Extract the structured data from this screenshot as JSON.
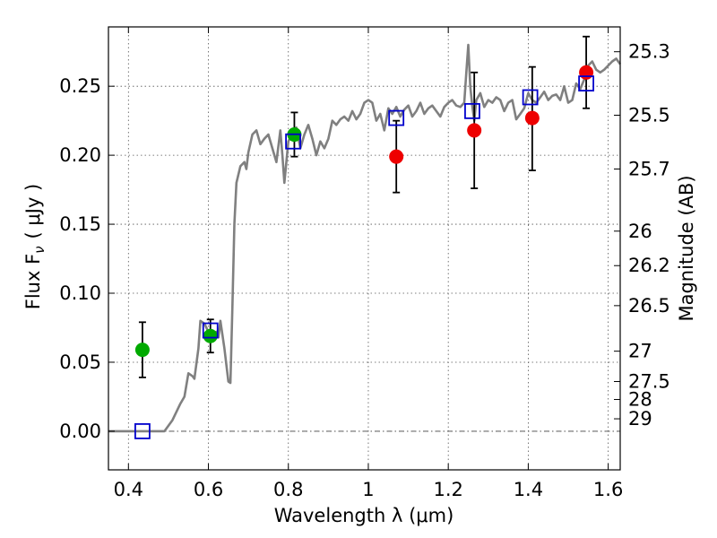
{
  "chart_data": {
    "type": "scatter",
    "title": "",
    "xlabel": "Wavelength  λ (μm)",
    "ylabel": "Flux  F",
    "ylabel_subscript": "ν",
    "ylabel_units": "( μJy )",
    "y2label": "Magnitude (AB)",
    "xlim": [
      0.35,
      1.63
    ],
    "ylim": [
      -0.028,
      0.293
    ],
    "grid": true,
    "x_ticks": [
      0.4,
      0.6,
      0.8,
      1.0,
      1.2,
      1.4,
      1.6
    ],
    "x_tick_labels": [
      "0.4",
      "0.6",
      "0.8",
      "1",
      "1.2",
      "1.4",
      "1.6"
    ],
    "y_ticks": [
      0.0,
      0.05,
      0.1,
      0.15,
      0.2,
      0.25
    ],
    "y_tick_labels": [
      "0.00",
      "0.05",
      "0.10",
      "0.15",
      "0.20",
      "0.25"
    ],
    "y2_ticks": [
      {
        "flux": 0.275,
        "label": "25.3"
      },
      {
        "flux": 0.229,
        "label": "25.5"
      },
      {
        "flux": 0.19,
        "label": "25.7"
      },
      {
        "flux": 0.145,
        "label": "26"
      },
      {
        "flux": 0.12,
        "label": "26.2"
      },
      {
        "flux": 0.091,
        "label": "26.5"
      },
      {
        "flux": 0.058,
        "label": "27"
      },
      {
        "flux": 0.036,
        "label": "27.5"
      },
      {
        "flux": 0.023,
        "label": "28"
      },
      {
        "flux": 0.009,
        "label": "29"
      }
    ],
    "colors": {
      "model": "#808080",
      "green": "#00aa00",
      "red": "#ee0000",
      "blue": "#0000cc",
      "errorbar": "#000000",
      "grid": "#555555"
    },
    "model_spectrum": {
      "name": "model SED",
      "x": [
        0.35,
        0.49,
        0.51,
        0.53,
        0.54,
        0.55,
        0.56,
        0.565,
        0.575,
        0.58,
        0.59,
        0.6,
        0.61,
        0.62,
        0.625,
        0.63,
        0.64,
        0.65,
        0.655,
        0.66,
        0.665,
        0.67,
        0.68,
        0.69,
        0.695,
        0.7,
        0.71,
        0.72,
        0.73,
        0.74,
        0.75,
        0.76,
        0.77,
        0.78,
        0.785,
        0.79,
        0.8,
        0.81,
        0.82,
        0.83,
        0.84,
        0.85,
        0.86,
        0.87,
        0.88,
        0.89,
        0.9,
        0.91,
        0.92,
        0.93,
        0.94,
        0.95,
        0.96,
        0.97,
        0.98,
        0.99,
        1.0,
        1.01,
        1.02,
        1.03,
        1.04,
        1.05,
        1.06,
        1.07,
        1.08,
        1.09,
        1.1,
        1.11,
        1.12,
        1.13,
        1.14,
        1.15,
        1.16,
        1.17,
        1.18,
        1.19,
        1.2,
        1.21,
        1.22,
        1.23,
        1.24,
        1.245,
        1.25,
        1.255,
        1.26,
        1.265,
        1.27,
        1.28,
        1.29,
        1.3,
        1.31,
        1.32,
        1.33,
        1.34,
        1.35,
        1.36,
        1.37,
        1.38,
        1.39,
        1.4,
        1.41,
        1.42,
        1.43,
        1.44,
        1.45,
        1.46,
        1.47,
        1.48,
        1.49,
        1.5,
        1.51,
        1.52,
        1.53,
        1.54,
        1.55,
        1.56,
        1.57,
        1.58,
        1.59,
        1.6,
        1.61,
        1.62,
        1.63
      ],
      "y": [
        0.0,
        0.0,
        0.008,
        0.02,
        0.025,
        0.042,
        0.04,
        0.038,
        0.06,
        0.08,
        0.078,
        0.072,
        0.066,
        0.072,
        0.068,
        0.08,
        0.06,
        0.036,
        0.035,
        0.09,
        0.15,
        0.18,
        0.192,
        0.195,
        0.19,
        0.202,
        0.215,
        0.218,
        0.208,
        0.212,
        0.215,
        0.205,
        0.195,
        0.218,
        0.2,
        0.18,
        0.21,
        0.216,
        0.22,
        0.205,
        0.215,
        0.222,
        0.212,
        0.2,
        0.21,
        0.205,
        0.212,
        0.225,
        0.222,
        0.226,
        0.228,
        0.225,
        0.232,
        0.226,
        0.23,
        0.238,
        0.24,
        0.238,
        0.225,
        0.23,
        0.218,
        0.234,
        0.23,
        0.235,
        0.228,
        0.233,
        0.236,
        0.228,
        0.232,
        0.238,
        0.23,
        0.234,
        0.236,
        0.232,
        0.228,
        0.235,
        0.238,
        0.24,
        0.236,
        0.235,
        0.238,
        0.26,
        0.28,
        0.25,
        0.236,
        0.225,
        0.24,
        0.245,
        0.235,
        0.24,
        0.238,
        0.242,
        0.24,
        0.232,
        0.238,
        0.24,
        0.226,
        0.23,
        0.234,
        0.245,
        0.24,
        0.238,
        0.242,
        0.246,
        0.24,
        0.243,
        0.244,
        0.24,
        0.25,
        0.238,
        0.24,
        0.252,
        0.248,
        0.255,
        0.265,
        0.268,
        0.262,
        0.26,
        0.262,
        0.265,
        0.268,
        0.27,
        0.266
      ]
    },
    "series": [
      {
        "name": "green circles",
        "marker": "circle",
        "color": "#00aa00",
        "x": [
          0.435,
          0.605,
          0.815
        ],
        "y": [
          0.059,
          0.069,
          0.215
        ],
        "yerr_low": [
          0.039,
          0.057,
          0.199
        ],
        "yerr_high": [
          0.079,
          0.081,
          0.231
        ]
      },
      {
        "name": "red circles",
        "marker": "circle",
        "color": "#ee0000",
        "x": [
          1.07,
          1.265,
          1.41,
          1.545
        ],
        "y": [
          0.199,
          0.218,
          0.227,
          0.26
        ],
        "yerr_low": [
          0.173,
          0.176,
          0.189,
          0.234
        ],
        "yerr_high": [
          0.225,
          0.26,
          0.264,
          0.286
        ]
      },
      {
        "name": "blue squares",
        "marker": "square",
        "color": "#0000cc",
        "x": [
          0.435,
          0.605,
          0.812,
          1.07,
          1.26,
          1.405,
          1.545
        ],
        "y": [
          0.0,
          0.073,
          0.21,
          0.227,
          0.232,
          0.242,
          0.252
        ]
      }
    ]
  }
}
